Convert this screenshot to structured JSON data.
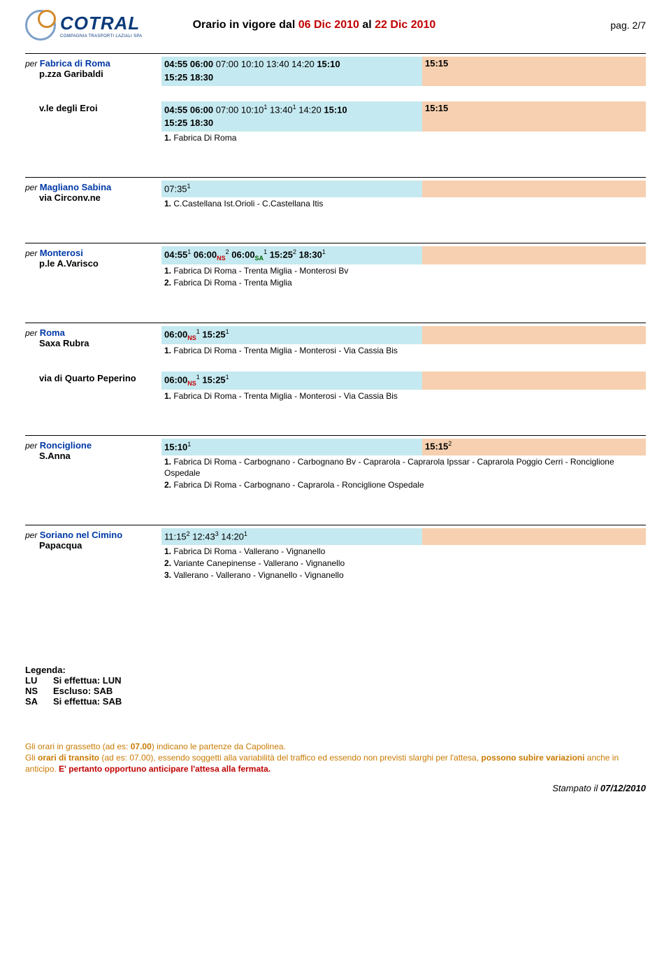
{
  "header": {
    "logo_name": "COTRAL",
    "logo_sub": "COMPAGNIA TRASPORTI LAZIALI SPA",
    "title_prefix": "Orario in vigore dal ",
    "date_from": "06 Dic 2010",
    "title_mid": " al ",
    "date_to": "22 Dic 2010",
    "page": "pag. 2/7"
  },
  "sections": [
    {
      "dest": "Fabrica di Roma",
      "rows": [
        {
          "loc": "p.zza Garibaldi",
          "times_html": "<b>04:55</b> <b>06:00</b> 07:00 10:10 13:40 14:20 <b>15:10</b><br><b>15:25</b> <b>18:30</b>",
          "right_html": "<b>15:15</b>",
          "notes": []
        },
        {
          "sub": true,
          "loc": "v.le degli Eroi",
          "times_html": "<b>04:55</b> <b>06:00</b> 07:00 10:10<span class='sup'>1</span> 13:40<span class='sup'>1</span> 14:20 <b>15:10</b><br><b>15:25</b> <b>18:30</b>",
          "right_html": "<b>15:15</b>",
          "notes": [
            {
              "n": "1.",
              "t": "Fabrica Di Roma"
            }
          ]
        }
      ]
    },
    {
      "dest": "Magliano Sabina",
      "rows": [
        {
          "loc": "via Circonv.ne",
          "times_html": "07:35<span class='sup'>1</span>",
          "right_html": "",
          "notes": [
            {
              "n": "1.",
              "t": "C.Castellana Ist.Orioli - C.Castellana Itis"
            }
          ]
        }
      ]
    },
    {
      "dest": "Monterosi",
      "rows": [
        {
          "loc": "p.le A.Varisco",
          "times_html": "<b>04:55</b><span class='sup'>1</span> <b>06:00</b><span class='sub ns'>NS</span><span class='sup'>2</span> <b>06:00</b><span class='sub sa'>SA</span><span class='sup'>1</span> <b>15:25</b><span class='sup'>2</span> <b>18:30</b><span class='sup'>1</span>",
          "right_html": "",
          "notes": [
            {
              "n": "1.",
              "t": "Fabrica Di Roma - Trenta Miglia - Monterosi Bv"
            },
            {
              "n": "2.",
              "t": "Fabrica Di Roma - Trenta Miglia"
            }
          ]
        }
      ]
    },
    {
      "dest": "Roma",
      "rows": [
        {
          "loc": "Saxa Rubra",
          "times_html": "<b>06:00</b><span class='sub ns'>NS</span><span class='sup'>1</span> <b>15:25</b><span class='sup'>1</span>",
          "right_html": "",
          "notes": [
            {
              "n": "1.",
              "t": "Fabrica Di Roma - Trenta Miglia - Monterosi - Via Cassia Bis"
            }
          ]
        },
        {
          "sub": true,
          "loc": "via di Quarto Peperino",
          "times_html": "<b>06:00</b><span class='sub ns'>NS</span><span class='sup'>1</span> <b>15:25</b><span class='sup'>1</span>",
          "right_html": "",
          "notes": [
            {
              "n": "1.",
              "t": "Fabrica Di Roma - Trenta Miglia - Monterosi - Via Cassia Bis"
            }
          ]
        }
      ]
    },
    {
      "dest": "Ronciglione",
      "rows": [
        {
          "loc": "S.Anna",
          "times_html": "<b>15:10</b><span class='sup'>1</span>",
          "right_html": "<b>15:15</b><span class='sup'>2</span>",
          "notes": [
            {
              "n": "1.",
              "t": "Fabrica Di Roma - Carbognano - Carbognano Bv - Caprarola - Caprarola Ipssar - Caprarola Poggio Cerri - Ronciglione Ospedale"
            },
            {
              "n": "2.",
              "t": "Fabrica Di Roma - Carbognano - Caprarola - Ronciglione Ospedale"
            }
          ]
        }
      ]
    },
    {
      "dest": "Soriano nel Cimino",
      "rows": [
        {
          "loc": "Papacqua",
          "times_html": "11:15<span class='sup'>2</span> 12:43<span class='sup'>3</span> 14:20<span class='sup'>1</span>",
          "right_html": "",
          "notes": [
            {
              "n": "1.",
              "t": "Fabrica Di Roma - Vallerano - Vignanello"
            },
            {
              "n": "2.",
              "t": "Variante Canepinense - Vallerano - Vignanello"
            },
            {
              "n": "3.",
              "t": "Vallerano - Vallerano - Vignanello - Vignanello"
            }
          ]
        }
      ]
    }
  ],
  "legenda": {
    "title": "Legenda:",
    "items": [
      {
        "k": "LU",
        "cls": "lu",
        "v": "Si effettua: LUN"
      },
      {
        "k": "NS",
        "cls": "ns",
        "v": "Escluso: SAB"
      },
      {
        "k": "SA",
        "cls": "sa",
        "v": "Si effettua: SAB"
      }
    ]
  },
  "footer": {
    "line1a": "Gli orari in grassetto",
    "line1b": " (ad es: ",
    "line1c": "07.00",
    "line1d": ") indicano le partenze da Capolinea.",
    "line2a": "Gli ",
    "line2b": "orari di transito",
    "line2c": " (ad es: 07.00), essendo soggetti alla variabilità del traffico ed essendo non previsti slarghi per l'attesa, ",
    "line2d": "possono subire variazioni",
    "line2e": " anche in anticipo. ",
    "line2f": "E' pertanto opportuno anticipare l'attesa alla fermata."
  },
  "print": {
    "label": "Stampato il ",
    "date": "07/12/2010"
  },
  "colors": {
    "blue_stripe": "#c5e9f0",
    "pink_stripe": "#f6d0b0",
    "dest_color": "#0039a6",
    "red": "#c00000"
  }
}
